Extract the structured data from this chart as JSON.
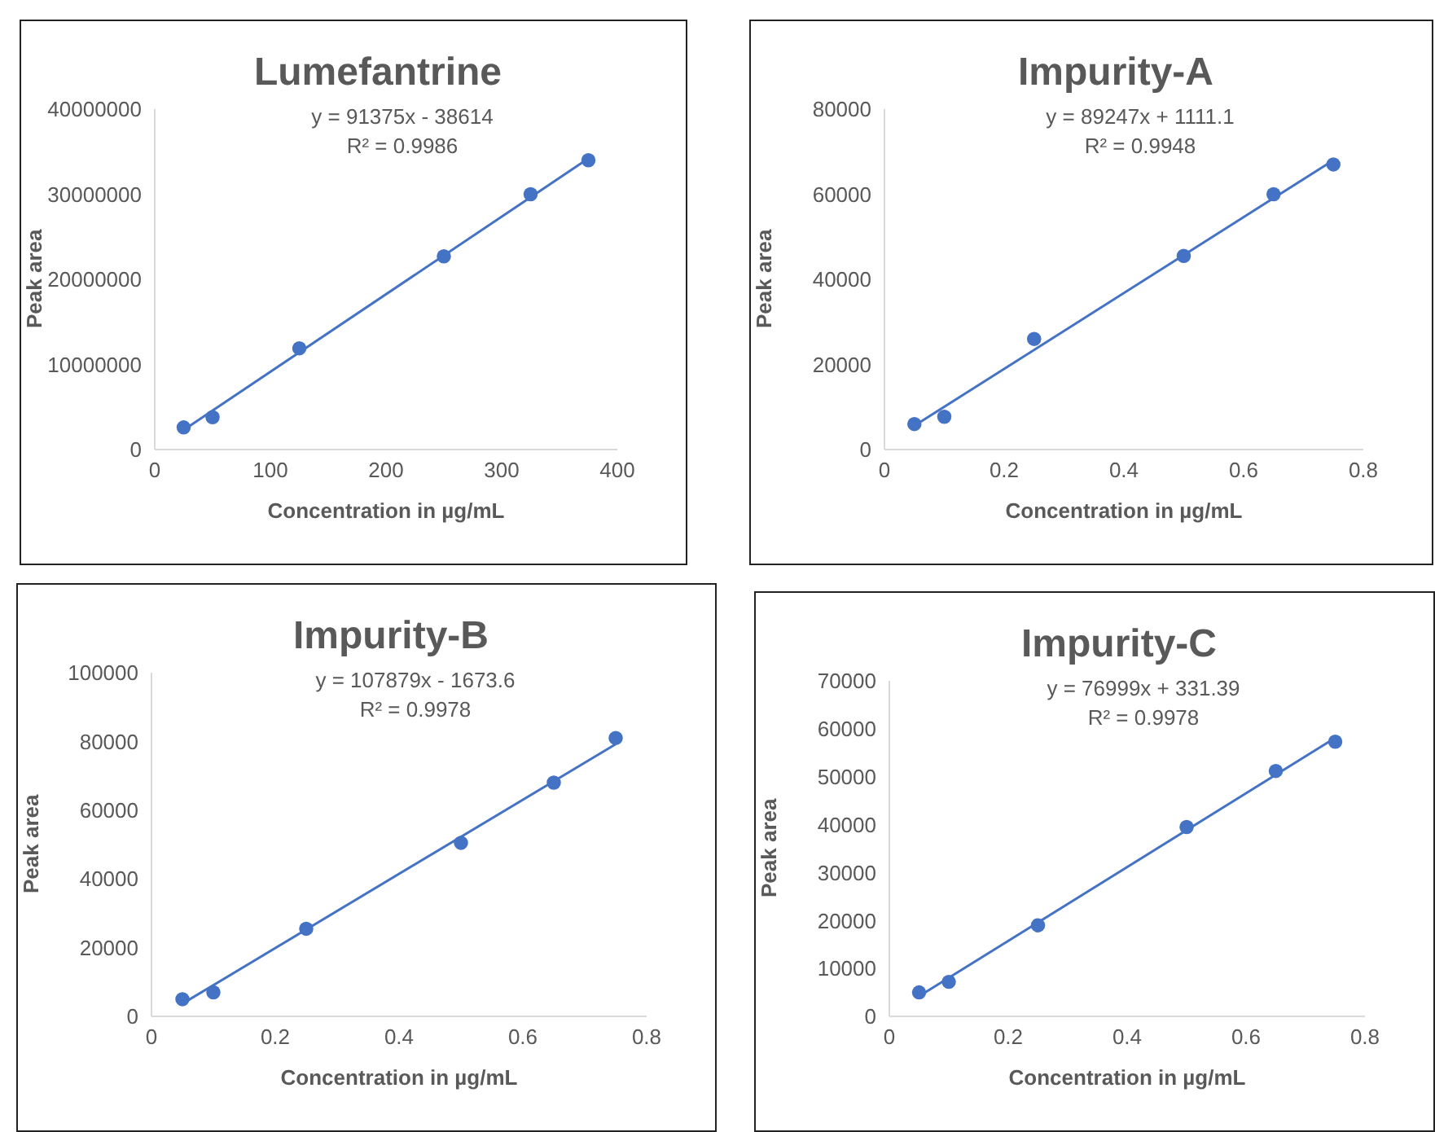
{
  "chart_data": [
    {
      "type": "scatter",
      "title": "Lumefantrine",
      "xlabel": "Concentration in µg/mL",
      "ylabel": "Peak area",
      "x": [
        25,
        50,
        125,
        250,
        325,
        375
      ],
      "xlim": [
        0,
        400
      ],
      "xticks": [
        0,
        100,
        200,
        300,
        400
      ],
      "ylim": [
        0,
        40000000
      ],
      "yticks": [
        0,
        10000000,
        20000000,
        30000000,
        40000000
      ],
      "annotations": [
        "y = 91375x - 38614",
        "R² = 0.9986"
      ],
      "series": [
        {
          "color": "#4472c4",
          "marker": "circle",
          "values": [
            2600000,
            3800000,
            11900000,
            22700000,
            30000000,
            34000000
          ]
        },
        {
          "type": "line",
          "marker": "none",
          "color": "#4472c4",
          "x": [
            25,
            375
          ],
          "values": [
            2300000,
            34200000
          ]
        }
      ]
    },
    {
      "type": "scatter",
      "title": "Impurity-A",
      "xlabel": "Concentration in µg/mL",
      "ylabel": "Peak area",
      "x": [
        0.05,
        0.1,
        0.25,
        0.5,
        0.65,
        0.75
      ],
      "xlim": [
        0,
        0.8
      ],
      "xticks": [
        0,
        0.2,
        0.4,
        0.6,
        0.8
      ],
      "ylim": [
        0,
        80000
      ],
      "yticks": [
        0,
        20000,
        40000,
        60000,
        80000
      ],
      "annotations": [
        "y = 89247x + 1111.1",
        "R² = 0.9948"
      ],
      "series": [
        {
          "color": "#4472c4",
          "marker": "circle",
          "values": [
            6000,
            7700,
            26000,
            45500,
            60000,
            67000
          ]
        },
        {
          "type": "line",
          "marker": "none",
          "color": "#4472c4",
          "x": [
            0.05,
            0.75
          ],
          "values": [
            5600,
            68000
          ]
        }
      ]
    },
    {
      "type": "scatter",
      "title": "Impurity-B",
      "xlabel": "Concentration in µg/mL",
      "ylabel": "Peak area",
      "x": [
        0.05,
        0.1,
        0.25,
        0.5,
        0.65,
        0.75
      ],
      "xlim": [
        0,
        0.8
      ],
      "xticks": [
        0,
        0.2,
        0.4,
        0.6,
        0.8
      ],
      "ylim": [
        0,
        100000
      ],
      "yticks": [
        0,
        20000,
        40000,
        60000,
        80000,
        100000
      ],
      "annotations": [
        "y = 107879x - 1673.6",
        "R² = 0.9978"
      ],
      "series": [
        {
          "color": "#4472c4",
          "marker": "circle",
          "values": [
            5000,
            7000,
            25500,
            50500,
            68000,
            81000
          ]
        },
        {
          "type": "line",
          "marker": "none",
          "color": "#4472c4",
          "x": [
            0.05,
            0.75
          ],
          "values": [
            3700,
            79200
          ]
        }
      ]
    },
    {
      "type": "scatter",
      "title": "Impurity-C",
      "xlabel": "Concentration in µg/mL",
      "ylabel": "Peak area",
      "x": [
        0.05,
        0.1,
        0.25,
        0.5,
        0.65,
        0.75
      ],
      "xlim": [
        0,
        0.8
      ],
      "xticks": [
        0,
        0.2,
        0.4,
        0.6,
        0.8
      ],
      "ylim": [
        0,
        70000
      ],
      "yticks": [
        0,
        10000,
        20000,
        30000,
        40000,
        50000,
        60000,
        70000
      ],
      "annotations": [
        "y = 76999x + 331.39",
        "R² = 0.9978"
      ],
      "series": [
        {
          "color": "#4472c4",
          "marker": "circle",
          "values": [
            5000,
            7200,
            19000,
            39500,
            51200,
            57300
          ]
        },
        {
          "type": "line",
          "marker": "none",
          "color": "#4472c4",
          "x": [
            0.05,
            0.75
          ],
          "values": [
            4200,
            58100
          ]
        }
      ]
    }
  ]
}
